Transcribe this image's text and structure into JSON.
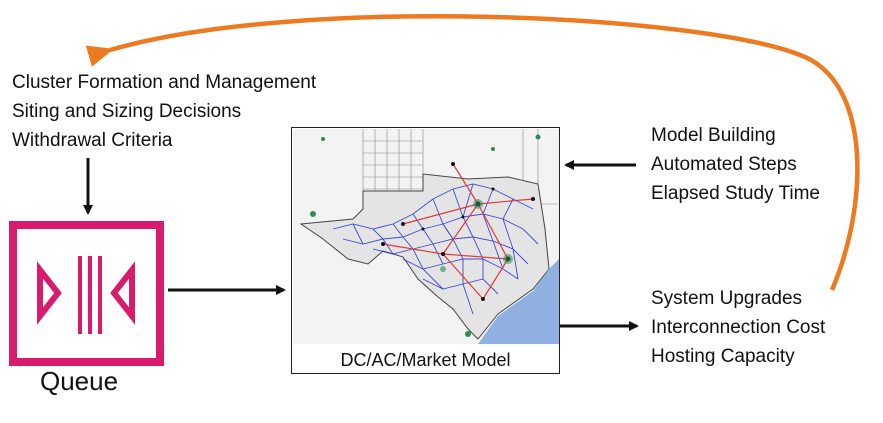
{
  "left_labels": [
    "Cluster Formation and Management",
    "Siting and Sizing Decisions",
    "Withdrawal Criteria"
  ],
  "right_top_labels": [
    "Model Building",
    "Automated Steps",
    "Elapsed Study Time"
  ],
  "right_bottom_labels": [
    "System Upgrades",
    "Interconnection Cost",
    "Hosting Capacity"
  ],
  "queue_label": "Queue",
  "map_caption": "DC/AC/Market Model",
  "colors": {
    "queue_magenta": "#d81b6c",
    "feedback_orange": "#ee7a1f",
    "blue_lines": "#1f2fd0",
    "red_lines": "#e23a3a",
    "gulf_water": "#8fb0e0",
    "land_gray": "#e6e6e6"
  },
  "icons": {
    "queue": "queue-icon",
    "map": "texas-grid-map"
  }
}
